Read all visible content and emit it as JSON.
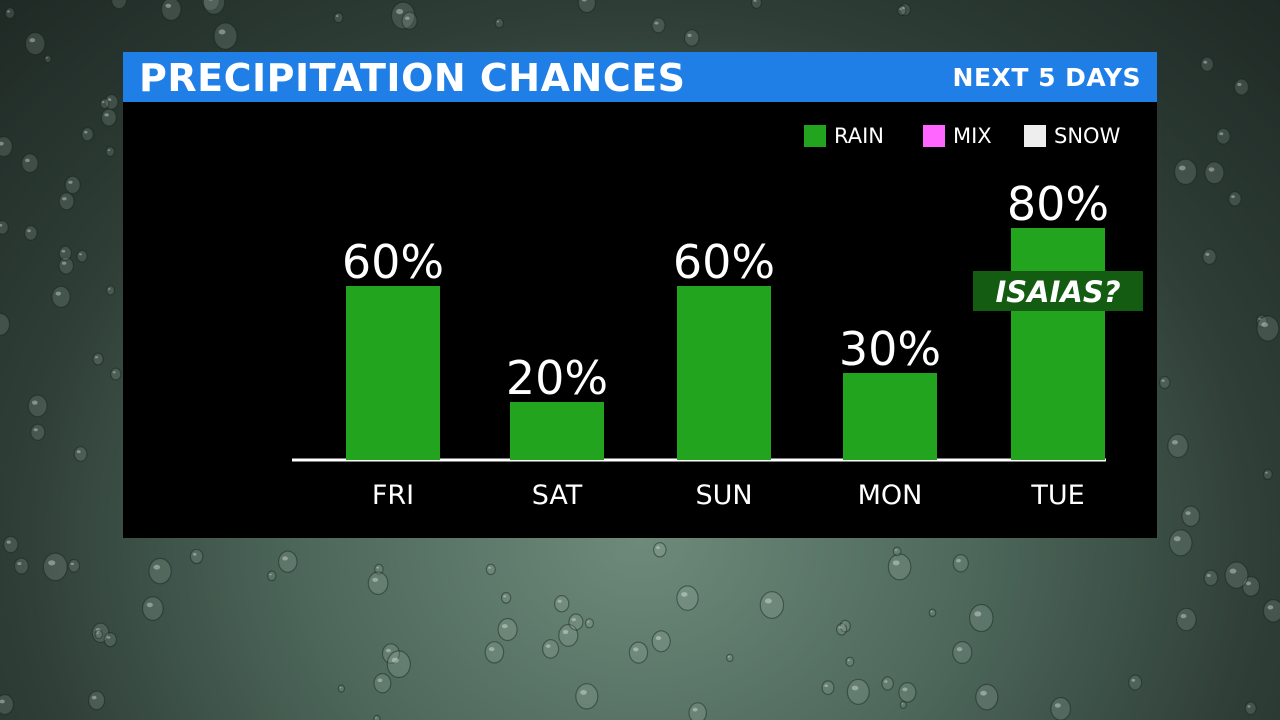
{
  "header": {
    "title": "PRECIPITATION CHANCES",
    "subtitle": "NEXT 5 DAYS"
  },
  "legend": [
    {
      "label": "RAIN",
      "color": "#23a41f"
    },
    {
      "label": "MIX",
      "color": "#ff66ff"
    },
    {
      "label": "SNOW",
      "color": "#eeeeee"
    }
  ],
  "colors": {
    "header_bg": "#1f7fe6",
    "panel_bg": "#000000",
    "bar": "#23a41f",
    "annotation_bg": "#145c12"
  },
  "chart_data": {
    "type": "bar",
    "title": "PRECIPITATION CHANCES",
    "subtitle": "NEXT 5 DAYS",
    "categories": [
      "FRI",
      "SAT",
      "SUN",
      "MON",
      "TUE"
    ],
    "values": [
      60,
      20,
      60,
      30,
      80
    ],
    "value_labels": [
      "60%",
      "20%",
      "60%",
      "30%",
      "80%"
    ],
    "series": [
      {
        "name": "RAIN",
        "values": [
          60,
          20,
          60,
          30,
          80
        ]
      }
    ],
    "ylim": [
      0,
      100
    ],
    "grid": false,
    "legend_position": "top-right",
    "annotations": [
      {
        "category": "TUE",
        "text": "ISAIAS?"
      }
    ]
  }
}
